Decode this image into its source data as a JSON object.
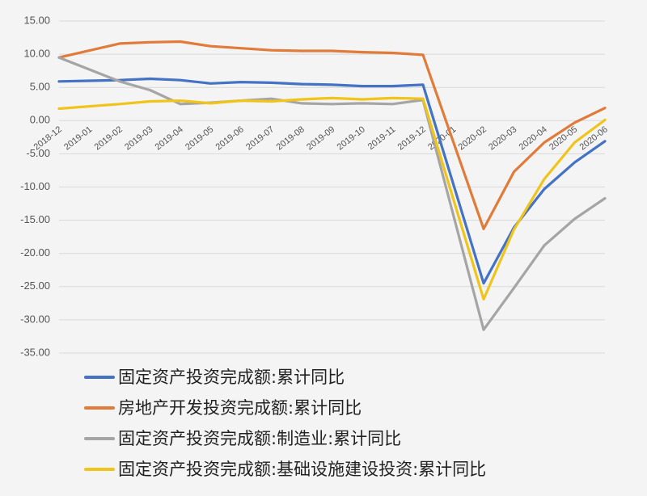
{
  "chart_data": {
    "type": "line",
    "title": "",
    "xlabel": "",
    "ylabel": "",
    "ylim": [
      -35,
      15
    ],
    "yticks": [
      15,
      10,
      5,
      0,
      -5,
      -10,
      -15,
      -20,
      -25,
      -30,
      -35
    ],
    "ytick_labels": [
      "15.00",
      "10.00",
      "5.00",
      "0.00",
      "-5.00",
      "-10.00",
      "-15.00",
      "-20.00",
      "-25.00",
      "-30.00",
      "-35.00"
    ],
    "categories": [
      "2018-12",
      "2019-01",
      "2019-02",
      "2019-03",
      "2019-04",
      "2019-05",
      "2019-06",
      "2019-07",
      "2019-08",
      "2019-09",
      "2019-10",
      "2019-11",
      "2019-12",
      "2020-01",
      "2020-02",
      "2020-03",
      "2020-04",
      "2020-05",
      "2020-06"
    ],
    "grid": true,
    "legend_position": "bottom",
    "series": [
      {
        "name": "固定资产投资完成额:累计同比",
        "color": "#4472c4",
        "values": [
          5.9,
          6.0,
          6.1,
          6.3,
          6.1,
          5.6,
          5.8,
          5.7,
          5.5,
          5.4,
          5.2,
          5.2,
          5.4,
          null,
          -24.5,
          -16.1,
          -10.3,
          -6.3,
          -3.1
        ]
      },
      {
        "name": "房地产开发投资完成额:累计同比",
        "color": "#e07b39",
        "values": [
          9.5,
          null,
          11.6,
          11.8,
          11.9,
          11.2,
          10.9,
          10.6,
          10.5,
          10.5,
          10.3,
          10.2,
          9.9,
          null,
          -16.3,
          -7.7,
          -3.3,
          -0.3,
          1.9
        ]
      },
      {
        "name": "固定资产投资完成额:制造业:累计同比",
        "color": "#a5a5a5",
        "values": [
          9.5,
          null,
          5.9,
          4.6,
          2.5,
          2.7,
          3.0,
          3.3,
          2.6,
          2.5,
          2.6,
          2.5,
          3.1,
          null,
          -31.5,
          -25.2,
          -18.8,
          -14.8,
          -11.7
        ]
      },
      {
        "name": "固定资产投资完成额:基础设施建设投资:累计同比",
        "color": "#f0c419",
        "values": [
          1.8,
          null,
          2.5,
          2.9,
          3.0,
          2.6,
          3.0,
          2.9,
          3.2,
          3.4,
          3.2,
          3.4,
          3.3,
          null,
          -26.9,
          -16.4,
          -8.8,
          -3.3,
          0.1
        ]
      }
    ]
  }
}
